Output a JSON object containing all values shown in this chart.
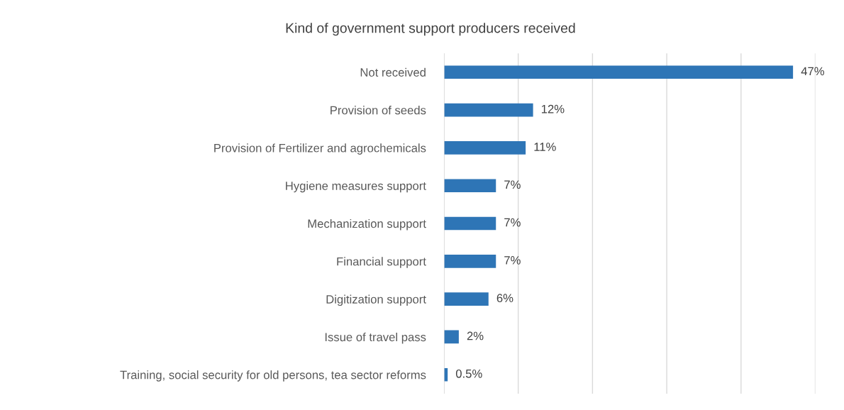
{
  "chart_data": {
    "type": "bar",
    "orientation": "horizontal",
    "title": "Kind of government support producers received",
    "categories": [
      "Not received",
      "Provision of seeds",
      "Provision of Fertilizer and agrochemicals",
      "Hygiene measures support",
      "Mechanization support",
      "Financial support",
      "Digitization support",
      "Issue of travel pass",
      "Training, social security for old persons, tea sector reforms"
    ],
    "values": [
      47,
      12,
      11,
      7,
      7,
      7,
      6,
      2,
      0.5
    ],
    "value_labels": [
      "47%",
      "12%",
      "11%",
      "7%",
      "7%",
      "7%",
      "6%",
      "2%",
      "0.5%"
    ],
    "color": "#2e75b6",
    "xlim": [
      0,
      50
    ],
    "xticks": [
      {
        "value": 0,
        "label": null
      },
      {
        "value": 10,
        "label": null
      },
      {
        "value": 20,
        "label": null
      },
      {
        "value": 30,
        "label": null
      },
      {
        "value": 40,
        "label": null
      },
      {
        "value": 50,
        "label": null
      }
    ],
    "grid": "x",
    "tick_labels": "y"
  }
}
